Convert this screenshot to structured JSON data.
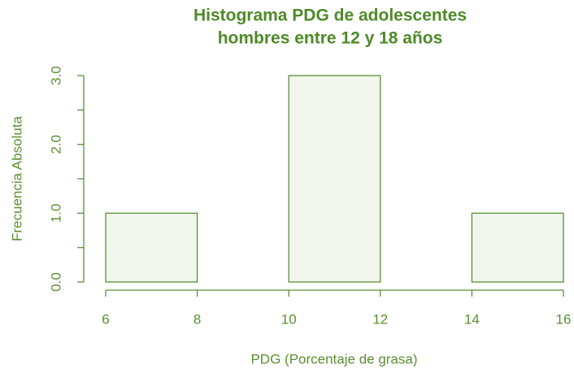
{
  "chart_data": {
    "type": "histogram",
    "title": [
      "Histograma PDG de adolescentes",
      "hombres entre 12 y 18 años"
    ],
    "x_label": "PDG (Porcentaje de grasa)",
    "y_label": "Frecuencia Absoluta",
    "bins": [
      6,
      8,
      10,
      12,
      14,
      16
    ],
    "values": [
      1,
      0,
      3,
      0,
      1
    ],
    "color": "#f2f5ec",
    "edge_color": "#5a9030",
    "xlim": [
      6,
      16
    ],
    "xticks": [
      6,
      8,
      10,
      12,
      14,
      16
    ],
    "ylim": [
      0,
      3
    ],
    "yticks": [
      {
        "value": 0,
        "label": "0.0"
      },
      {
        "value": 1,
        "label": "1.0"
      },
      {
        "value": 2,
        "label": "2.0"
      },
      {
        "value": 3,
        "label": "3.0"
      }
    ],
    "yminor": [
      0.5,
      1.5,
      2.5
    ]
  }
}
